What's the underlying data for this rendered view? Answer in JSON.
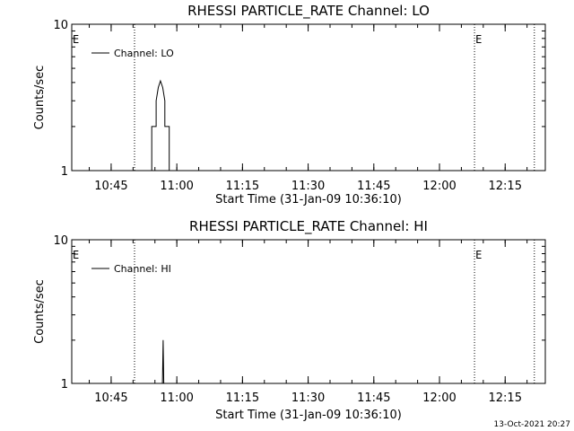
{
  "timestamp": "13-Oct-2021 20:27",
  "chart_data": [
    {
      "type": "line",
      "title": "RHESSI PARTICLE_RATE Channel: LO",
      "xlabel": "Start Time (31-Jan-09 10:36:10)",
      "ylabel": "Counts/sec",
      "y_scale": "log",
      "ylim": [
        1,
        10
      ],
      "y_ticks": [
        "1",
        "10"
      ],
      "x_ticks": [
        "10:45",
        "11:00",
        "11:15",
        "11:30",
        "11:45",
        "12:00",
        "12:15"
      ],
      "xlim_minutes": [
        -0.17,
        108.0
      ],
      "vlines_minutes": [
        14.17,
        91.83,
        105.5
      ],
      "markers": [
        {
          "text": "E",
          "minute": -0.17
        },
        {
          "text": "E",
          "minute": 91.83
        }
      ],
      "legend": {
        "position": "top-left",
        "entries": [
          "Channel: LO"
        ]
      },
      "series": [
        {
          "name": "Channel: LO",
          "x_minutes": [
            18.1,
            18.1,
            19.1,
            19.1,
            19.6,
            20.1,
            20.6,
            21.1,
            21.1,
            22.1,
            22.1
          ],
          "values": [
            1,
            2,
            2,
            3,
            3.7,
            4.1,
            3.7,
            3,
            2,
            2,
            1
          ]
        }
      ]
    },
    {
      "type": "line",
      "title": "RHESSI PARTICLE_RATE Channel: HI",
      "xlabel": "Start Time (31-Jan-09 10:36:10)",
      "ylabel": "Counts/sec",
      "y_scale": "log",
      "ylim": [
        1,
        10
      ],
      "y_ticks": [
        "1",
        "10"
      ],
      "x_ticks": [
        "10:45",
        "11:00",
        "11:15",
        "11:30",
        "11:45",
        "12:00",
        "12:15"
      ],
      "xlim_minutes": [
        -0.17,
        108.0
      ],
      "vlines_minutes": [
        14.17,
        91.83,
        105.5
      ],
      "markers": [
        {
          "text": "E",
          "minute": -0.17
        },
        {
          "text": "E",
          "minute": 91.83
        }
      ],
      "legend": {
        "position": "top-left",
        "entries": [
          "Channel: HI"
        ]
      },
      "series": [
        {
          "name": "Channel: HI",
          "x_minutes": [
            20.55,
            20.7,
            20.85
          ],
          "values": [
            1,
            2,
            1
          ]
        }
      ]
    }
  ]
}
